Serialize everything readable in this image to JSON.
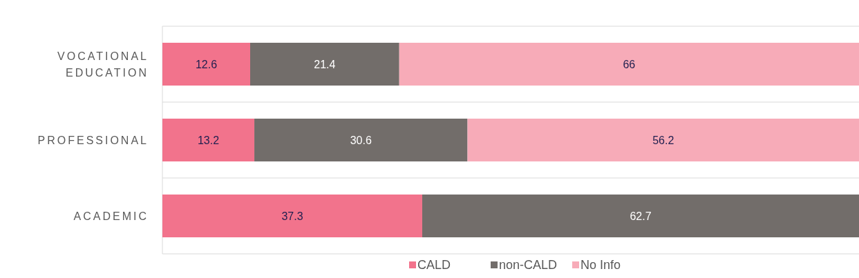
{
  "chart_data": {
    "type": "bar",
    "orientation": "horizontal",
    "stacked": true,
    "categories": [
      "VOCATIONAL EDUCATION",
      "PROFESSIONAL",
      "ACADEMIC"
    ],
    "series": [
      {
        "name": "CALD",
        "color": "#f2738c",
        "values": [
          12.6,
          13.2,
          37.3
        ]
      },
      {
        "name": "non-CALD",
        "color": "#726d6a",
        "values": [
          21.4,
          30.6,
          62.7
        ]
      },
      {
        "name": "No Info",
        "color": "#f7abb8",
        "values": [
          66,
          56.2,
          null
        ]
      }
    ],
    "xlim": [
      0,
      100
    ],
    "tick_labels": "y",
    "grid": "y",
    "data_labels": true,
    "legend": "bottom"
  }
}
